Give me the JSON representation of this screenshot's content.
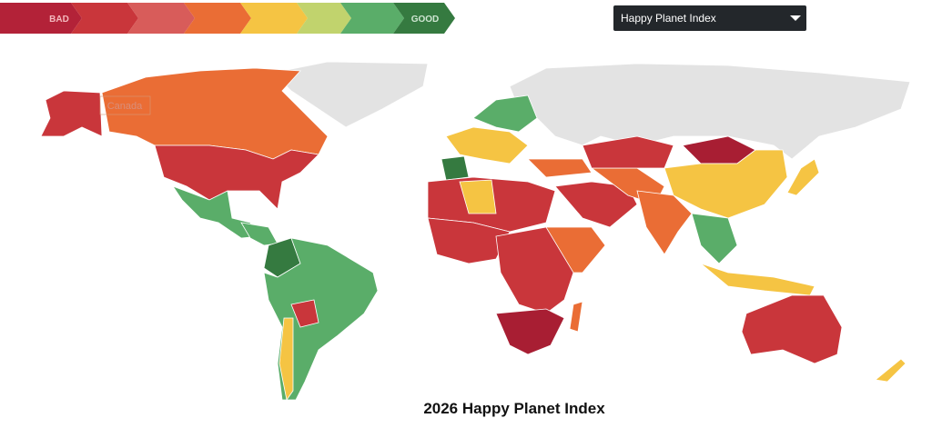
{
  "legend": {
    "low_label": "BAD",
    "high_label": "GOOD"
  },
  "dropdown": {
    "selected": "Happy Planet Index"
  },
  "map": {
    "hover_label": "Canada"
  },
  "title": "2026 Happy Planet Index"
}
